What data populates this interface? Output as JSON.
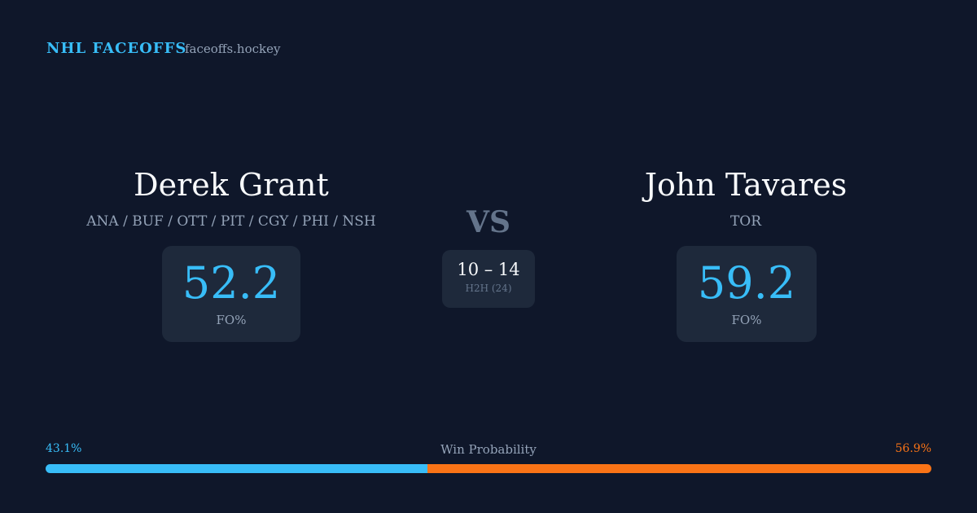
{
  "header": {
    "brand": "NHL FACEOFFS",
    "site": "faceoffs.hockey"
  },
  "players": [
    {
      "name": "Derek Grant",
      "teams": "ANA / BUF / OTT / PIT / CGY / PHI / NSH",
      "fo_pct": 52.2,
      "fo_label": "FO%"
    },
    {
      "name": "John Tavares",
      "teams": "TOR",
      "fo_pct": 59.2,
      "fo_label": "FO%"
    }
  ],
  "versus": "VS",
  "head_to_head": {
    "score": "10 – 14",
    "label": "H2H (24)"
  },
  "win_probability": {
    "title": "Win Probability",
    "left": {
      "value": 43.1,
      "label": "43.1%",
      "color": "#38bdf8"
    },
    "right": {
      "value": 56.9,
      "label": "56.9%",
      "color": "#f97316"
    }
  }
}
